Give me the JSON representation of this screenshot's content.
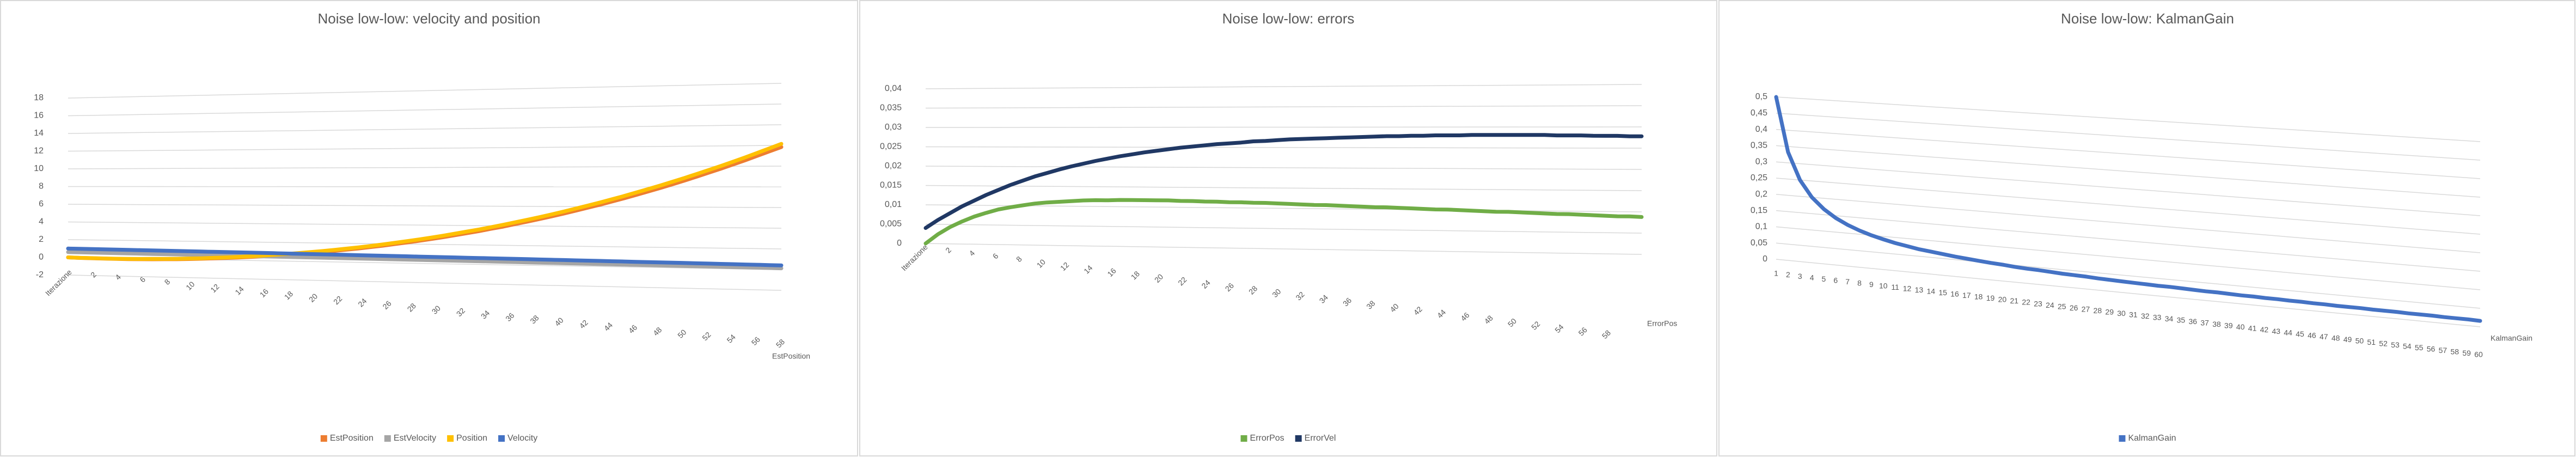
{
  "chart_data": [
    {
      "type": "line",
      "title": "Noise low-low: velocity and position",
      "depth_label": "EstPosition",
      "categories": [
        "Iterazione",
        null,
        "2",
        null,
        "4",
        null,
        "6",
        null,
        "8",
        null,
        "10",
        null,
        "12",
        null,
        "14",
        null,
        "16",
        null,
        "18",
        null,
        "20",
        null,
        "22",
        null,
        "24",
        null,
        "26",
        null,
        "28",
        null,
        "30",
        null,
        "32",
        null,
        "34",
        null,
        "36",
        null,
        "38",
        null,
        "40",
        null,
        "42",
        null,
        "44",
        null,
        "46",
        null,
        "48",
        null,
        "50",
        null,
        "52",
        null,
        "54",
        null,
        "56",
        null,
        "58",
        null
      ],
      "ylim": [
        -2,
        18
      ],
      "yticks": [
        -2,
        0,
        2,
        4,
        6,
        8,
        10,
        12,
        14,
        16,
        18
      ],
      "grid": true,
      "series": [
        {
          "name": "EstPosition",
          "color": "#ed7d31",
          "values": [
            0,
            -0.04,
            -0.05,
            -0.07,
            -0.08,
            -0.08,
            -0.07,
            -0.05,
            -0.02,
            0,
            0.05,
            0.1,
            0.16,
            0.23,
            0.29,
            0.38,
            0.46,
            0.57,
            0.67,
            0.78,
            0.9,
            1.03,
            1.17,
            1.32,
            1.46,
            1.63,
            1.79,
            1.98,
            2.16,
            2.35,
            2.55,
            2.76,
            2.98,
            3.21,
            3.43,
            3.68,
            3.92,
            4.19,
            4.45,
            4.72,
            5.0,
            5.29,
            5.59,
            5.9,
            6.2,
            6.53,
            6.85,
            7.2,
            7.54,
            7.89,
            8.25,
            8.62,
            9.0,
            9.39,
            9.77,
            10.18,
            10.58,
            11.01,
            11.43,
            11.85
          ]
        },
        {
          "name": "EstVelocity",
          "color": "#a5a5a5",
          "values": [
            0.6,
            0.592,
            0.584,
            0.576,
            0.568,
            0.56,
            0.552,
            0.544,
            0.536,
            0.528,
            0.52,
            0.512,
            0.504,
            0.496,
            0.488,
            0.48,
            0.472,
            0.464,
            0.456,
            0.448,
            0.44,
            0.432,
            0.424,
            0.416,
            0.408,
            0.4,
            0.392,
            0.384,
            0.376,
            0.368,
            0.36,
            0.352,
            0.344,
            0.336,
            0.328,
            0.32,
            0.312,
            0.304,
            0.296,
            0.288,
            0.28,
            0.272,
            0.264,
            0.256,
            0.248,
            0.24,
            0.232,
            0.224,
            0.216,
            0.208,
            0.2,
            0.192,
            0.184,
            0.176,
            0.168,
            0.16,
            0.152,
            0.144,
            0.136,
            0.128
          ]
        },
        {
          "name": "Position",
          "color": "#ffc000",
          "values": [
            0,
            -0.03,
            -0.04,
            -0.05,
            -0.06,
            -0.05,
            -0.04,
            -0.01,
            0.02,
            0.05,
            0.1,
            0.15,
            0.22,
            0.29,
            0.36,
            0.45,
            0.54,
            0.65,
            0.76,
            0.87,
            1.0,
            1.13,
            1.28,
            1.43,
            1.58,
            1.75,
            1.92,
            2.11,
            2.3,
            2.49,
            2.7,
            2.91,
            3.14,
            3.37,
            3.6,
            3.85,
            4.1,
            4.37,
            4.64,
            4.91,
            5.2,
            5.49,
            5.8,
            6.11,
            6.42,
            6.75,
            7.08,
            7.43,
            7.78,
            8.13,
            8.5,
            8.87,
            9.26,
            9.65,
            10.04,
            10.45,
            10.86,
            11.29,
            11.72,
            12.15
          ]
        },
        {
          "name": "Velocity",
          "color": "#4472c4",
          "values": [
            1,
            0.99,
            0.98,
            0.97,
            0.96,
            0.95,
            0.94,
            0.93,
            0.92,
            0.91,
            0.9,
            0.89,
            0.88,
            0.87,
            0.86,
            0.85,
            0.84,
            0.83,
            0.82,
            0.81,
            0.8,
            0.79,
            0.78,
            0.77,
            0.76,
            0.75,
            0.74,
            0.73,
            0.72,
            0.71,
            0.7,
            0.69,
            0.68,
            0.67,
            0.66,
            0.65,
            0.64,
            0.63,
            0.62,
            0.61,
            0.6,
            0.59,
            0.58,
            0.57,
            0.56,
            0.55,
            0.54,
            0.53,
            0.52,
            0.51,
            0.5,
            0.49,
            0.48,
            0.47,
            0.46,
            0.45,
            0.44,
            0.43,
            0.42,
            0.41
          ]
        }
      ]
    },
    {
      "type": "line",
      "title": "Noise low-low: errors",
      "depth_label": "ErrorPos",
      "categories": [
        "Iterazione",
        null,
        "2",
        null,
        "4",
        null,
        "6",
        null,
        "8",
        null,
        "10",
        null,
        "12",
        null,
        "14",
        null,
        "16",
        null,
        "18",
        null,
        "20",
        null,
        "22",
        null,
        "24",
        null,
        "26",
        null,
        "28",
        null,
        "30",
        null,
        "32",
        null,
        "34",
        null,
        "36",
        null,
        "38",
        null,
        "40",
        null,
        "42",
        null,
        "44",
        null,
        "46",
        null,
        "48",
        null,
        "50",
        null,
        "52",
        null,
        "54",
        null,
        "56",
        null,
        "58",
        null
      ],
      "ylim": [
        0,
        0.04
      ],
      "yticks": [
        0,
        {
          "value": 0.005,
          "label": "0,005"
        },
        {
          "value": 0.01,
          "label": "0,01"
        },
        {
          "value": 0.015,
          "label": "0,015"
        },
        {
          "value": 0.02,
          "label": "0,02"
        },
        {
          "value": 0.025,
          "label": "0,025"
        },
        {
          "value": 0.03,
          "label": "0,03"
        },
        {
          "value": 0.035,
          "label": "0,035"
        },
        {
          "value": 0.04,
          "label": "0,04"
        }
      ],
      "grid": true,
      "series": [
        {
          "name": "ErrorPos",
          "color": "#70ad47",
          "values": [
            0,
            0.0024,
            0.0043,
            0.0058,
            0.0071,
            0.0081,
            0.009,
            0.0096,
            0.0101,
            0.0106,
            0.0109,
            0.0111,
            0.0113,
            0.0115,
            0.0116,
            0.0116,
            0.0117,
            0.0117,
            0.0117,
            0.0117,
            0.0117,
            0.0116,
            0.0116,
            0.0115,
            0.0115,
            0.0114,
            0.0114,
            0.0113,
            0.0113,
            0.0112,
            0.0111,
            0.011,
            0.0109,
            0.0109,
            0.0108,
            0.0107,
            0.0106,
            0.0105,
            0.0105,
            0.0104,
            0.0103,
            0.0102,
            0.0101,
            0.0101,
            0.01,
            0.0099,
            0.0098,
            0.0097,
            0.0097,
            0.0096,
            0.0095,
            0.0094,
            0.0093,
            0.0093,
            0.0092,
            0.0091,
            0.009,
            0.0089,
            0.0089,
            0.0088
          ]
        },
        {
          "name": "ErrorVel",
          "color": "#203864",
          "values": [
            0.004,
            0.0061,
            0.0079,
            0.0097,
            0.0112,
            0.0127,
            0.014,
            0.0153,
            0.0164,
            0.0175,
            0.0184,
            0.0193,
            0.0201,
            0.0208,
            0.0215,
            0.0221,
            0.0227,
            0.0232,
            0.0237,
            0.0241,
            0.0245,
            0.0249,
            0.0252,
            0.0255,
            0.0258,
            0.026,
            0.0262,
            0.0265,
            0.0266,
            0.0268,
            0.027,
            0.0271,
            0.0272,
            0.0273,
            0.0274,
            0.0275,
            0.0276,
            0.0277,
            0.0278,
            0.0278,
            0.0279,
            0.0279,
            0.028,
            0.028,
            0.028,
            0.0281,
            0.0281,
            0.0281,
            0.0281,
            0.0281,
            0.0281,
            0.0281,
            0.028,
            0.028,
            0.028,
            0.0279,
            0.0279,
            0.0279,
            0.0278,
            0.0278
          ]
        }
      ]
    },
    {
      "type": "line",
      "title": "Noise low-low: KalmanGain",
      "depth_label": "KalmanGain",
      "categories": [
        "1",
        "2",
        "3",
        "4",
        "5",
        "6",
        "7",
        "8",
        "9",
        "10",
        "11",
        "12",
        "13",
        "14",
        "15",
        "16",
        "17",
        "18",
        "19",
        "20",
        "21",
        "22",
        "23",
        "24",
        "25",
        "26",
        "27",
        "28",
        "29",
        "30",
        "31",
        "32",
        "33",
        "34",
        "35",
        "36",
        "37",
        "38",
        "39",
        "40",
        "41",
        "42",
        "43",
        "44",
        "45",
        "46",
        "47",
        "48",
        "49",
        "50",
        "51",
        "52",
        "53",
        "54",
        "55",
        "56",
        "57",
        "58",
        "59",
        "60"
      ],
      "ylim": [
        0,
        0.5
      ],
      "yticks": [
        0,
        {
          "value": 0.05,
          "label": "0,05"
        },
        {
          "value": 0.1,
          "label": "0,1"
        },
        {
          "value": 0.15,
          "label": "0,15"
        },
        {
          "value": 0.2,
          "label": "0,2"
        },
        {
          "value": 0.25,
          "label": "0,25"
        },
        {
          "value": 0.3,
          "label": "0,3"
        },
        {
          "value": 0.35,
          "label": "0,35"
        },
        {
          "value": 0.4,
          "label": "0,4"
        },
        {
          "value": 0.45,
          "label": "0,45"
        },
        {
          "value": 0.5,
          "label": "0,5"
        }
      ],
      "grid": true,
      "series": [
        {
          "name": "KalmanGain",
          "color": "#4472c4",
          "values": [
            0.5,
            0.333,
            0.25,
            0.2,
            0.167,
            0.143,
            0.125,
            0.111,
            0.1,
            0.091,
            0.083,
            0.077,
            0.071,
            0.067,
            0.063,
            0.059,
            0.056,
            0.053,
            0.05,
            0.048,
            0.045,
            0.043,
            0.042,
            0.04,
            0.038,
            0.037,
            0.036,
            0.034,
            0.033,
            0.032,
            0.031,
            0.03,
            0.029,
            0.029,
            0.028,
            0.027,
            0.026,
            0.026,
            0.025,
            0.024,
            0.024,
            0.023,
            0.023,
            0.022,
            0.022,
            0.021,
            0.021,
            0.02,
            0.02,
            0.02,
            0.019,
            0.019,
            0.019,
            0.018,
            0.018,
            0.018,
            0.017,
            0.017,
            0.017,
            0.016
          ]
        }
      ]
    }
  ]
}
